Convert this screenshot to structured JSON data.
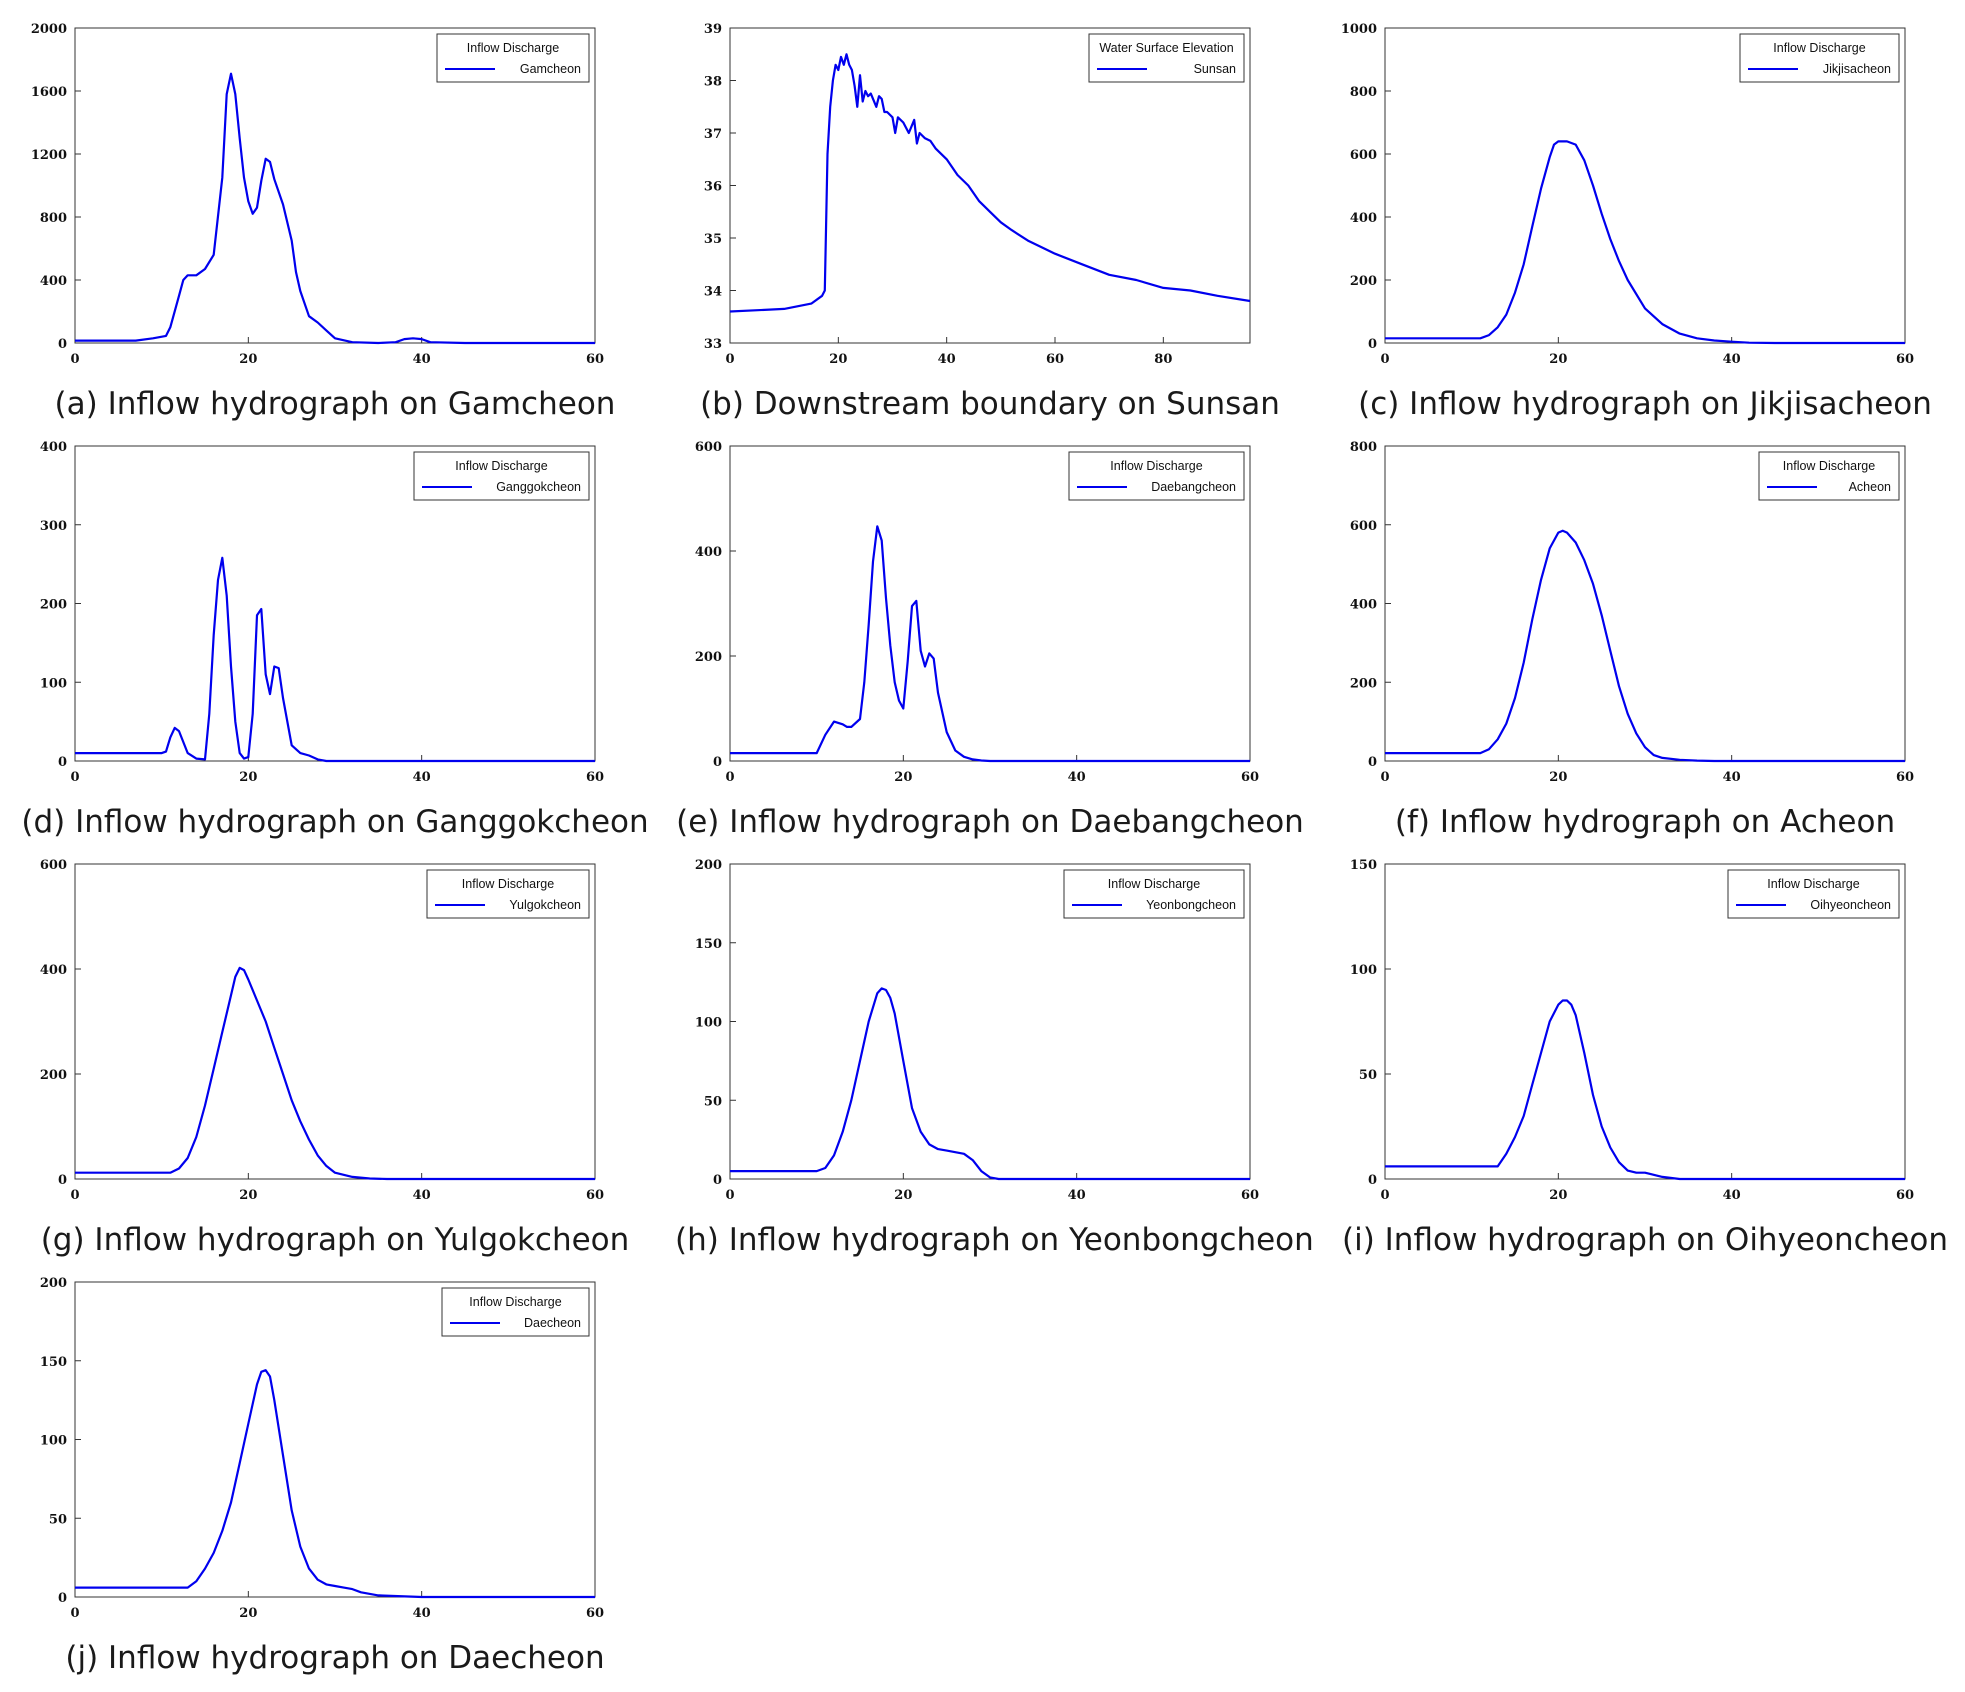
{
  "colors": {
    "line": "#0000ee",
    "frame": "#333333"
  },
  "chart_data": [
    {
      "id": "a",
      "type": "line",
      "caption": "(a) Inflow hydrograph on Gamcheon",
      "legend_title": "Inflow Discharge",
      "series_name": "Gamcheon",
      "xlim": [
        0,
        60
      ],
      "xticks": [
        0,
        20,
        40,
        60
      ],
      "ylim": [
        0,
        2000
      ],
      "yticks": [
        0,
        400,
        800,
        1200,
        1600,
        2000
      ],
      "x": [
        0,
        7,
        9,
        10.5,
        11,
        12,
        12.5,
        13,
        14,
        15,
        16,
        17,
        17.5,
        18,
        18.5,
        19,
        19.5,
        20,
        20.5,
        21,
        21.5,
        22,
        22.5,
        23,
        24,
        25,
        25.5,
        26,
        27,
        28,
        29,
        30,
        32,
        35,
        37,
        38,
        39,
        40,
        41,
        45,
        50,
        60
      ],
      "y": [
        15,
        15,
        30,
        45,
        100,
        300,
        400,
        430,
        430,
        470,
        560,
        1050,
        1580,
        1710,
        1580,
        1300,
        1050,
        900,
        820,
        860,
        1030,
        1170,
        1150,
        1040,
        880,
        650,
        450,
        330,
        170,
        130,
        80,
        30,
        5,
        0,
        5,
        25,
        30,
        25,
        5,
        0,
        0,
        0
      ]
    },
    {
      "id": "b",
      "type": "line",
      "caption": "(b) Downstream boundary on Sunsan",
      "legend_title": "Water Surface Elevation",
      "series_name": "Sunsan",
      "xlim": [
        0,
        96
      ],
      "xticks": [
        0,
        20,
        40,
        60,
        80
      ],
      "ylim": [
        33,
        39
      ],
      "yticks": [
        33,
        34,
        35,
        36,
        37,
        38,
        39
      ],
      "x": [
        0,
        10,
        15,
        17,
        17.5,
        18,
        18.5,
        19,
        19.5,
        20,
        20.5,
        21,
        21.5,
        22,
        22.5,
        23,
        23.5,
        24,
        24.5,
        25,
        25.5,
        26,
        27,
        27.5,
        28,
        28.5,
        29,
        30,
        30.5,
        31,
        32,
        33,
        34,
        34.5,
        35,
        36,
        37,
        38,
        40,
        42,
        44,
        46,
        48,
        50,
        52,
        55,
        58,
        60,
        65,
        70,
        75,
        80,
        85,
        90,
        96
      ],
      "y": [
        33.6,
        33.65,
        33.75,
        33.9,
        34.0,
        36.6,
        37.5,
        38.0,
        38.3,
        38.2,
        38.45,
        38.3,
        38.5,
        38.3,
        38.2,
        37.9,
        37.5,
        38.1,
        37.6,
        37.8,
        37.7,
        37.75,
        37.5,
        37.7,
        37.65,
        37.4,
        37.4,
        37.3,
        37.0,
        37.3,
        37.2,
        37.0,
        37.25,
        36.8,
        37.0,
        36.9,
        36.85,
        36.7,
        36.5,
        36.2,
        36.0,
        35.7,
        35.5,
        35.3,
        35.15,
        34.95,
        34.8,
        34.7,
        34.5,
        34.3,
        34.2,
        34.05,
        34.0,
        33.9,
        33.8
      ]
    },
    {
      "id": "c",
      "type": "line",
      "caption": "(c) Inflow hydrograph on Jikjisacheon",
      "legend_title": "Inflow Discharge",
      "series_name": "Jikjisacheon",
      "xlim": [
        0,
        60
      ],
      "xticks": [
        0,
        20,
        40,
        60
      ],
      "ylim": [
        0,
        1000
      ],
      "yticks": [
        0,
        200,
        400,
        600,
        800,
        1000
      ],
      "x": [
        0,
        11,
        12,
        13,
        14,
        15,
        16,
        17,
        18,
        19,
        19.5,
        20,
        21,
        22,
        23,
        24,
        25,
        26,
        27,
        28,
        30,
        32,
        34,
        36,
        38,
        40,
        42,
        45,
        50,
        60
      ],
      "y": [
        15,
        15,
        25,
        50,
        90,
        160,
        250,
        370,
        490,
        590,
        630,
        640,
        640,
        630,
        580,
        500,
        410,
        330,
        260,
        200,
        110,
        60,
        30,
        15,
        8,
        4,
        1,
        0,
        0,
        0
      ]
    },
    {
      "id": "d",
      "type": "line",
      "caption": "(d) Inflow hydrograph on Ganggokcheon",
      "legend_title": "Inflow Discharge",
      "series_name": "Ganggokcheon",
      "xlim": [
        0,
        60
      ],
      "xticks": [
        0,
        20,
        40,
        60
      ],
      "ylim": [
        0,
        400
      ],
      "yticks": [
        0,
        100,
        200,
        300,
        400
      ],
      "x": [
        0,
        10,
        10.5,
        11,
        11.5,
        12,
        13,
        14,
        15,
        15.5,
        16,
        16.5,
        17,
        17.5,
        18,
        18.5,
        19,
        19.5,
        20,
        20.5,
        21,
        21.5,
        22,
        22.5,
        23,
        23.5,
        24,
        25,
        26,
        27,
        28,
        29,
        30,
        32,
        60
      ],
      "y": [
        10,
        10,
        12,
        30,
        42,
        38,
        10,
        3,
        2,
        60,
        160,
        230,
        258,
        210,
        120,
        50,
        10,
        3,
        5,
        60,
        185,
        193,
        110,
        85,
        120,
        118,
        80,
        20,
        10,
        7,
        2,
        0,
        0,
        0,
        0
      ]
    },
    {
      "id": "e",
      "type": "line",
      "caption": "(e) Inflow hydrograph on Daebangcheon",
      "legend_title": "Inflow Discharge",
      "series_name": "Daebangcheon",
      "xlim": [
        0,
        60
      ],
      "xticks": [
        0,
        20,
        40,
        60
      ],
      "ylim": [
        0,
        600
      ],
      "yticks": [
        0,
        200,
        400,
        600
      ],
      "x": [
        0,
        10,
        11,
        12,
        13,
        13.5,
        14,
        15,
        15.5,
        16,
        16.5,
        17,
        17.5,
        18,
        18.5,
        19,
        19.5,
        20,
        20.5,
        21,
        21.5,
        22,
        22.5,
        23,
        23.5,
        24,
        25,
        26,
        27,
        28,
        29,
        30,
        35,
        60
      ],
      "y": [
        15,
        15,
        50,
        75,
        70,
        65,
        65,
        80,
        150,
        260,
        380,
        447,
        420,
        310,
        220,
        150,
        115,
        100,
        190,
        295,
        305,
        210,
        180,
        205,
        195,
        130,
        55,
        20,
        8,
        3,
        1,
        0,
        0,
        0
      ]
    },
    {
      "id": "f",
      "type": "line",
      "caption": "(f) Inflow hydrograph on Acheon",
      "legend_title": "Inflow Discharge",
      "series_name": "Acheon",
      "xlim": [
        0,
        60
      ],
      "xticks": [
        0,
        20,
        40,
        60
      ],
      "ylim": [
        0,
        800
      ],
      "yticks": [
        0,
        200,
        400,
        600,
        800
      ],
      "x": [
        0,
        11,
        12,
        13,
        14,
        15,
        16,
        17,
        18,
        19,
        20,
        20.5,
        21,
        22,
        23,
        24,
        25,
        26,
        27,
        28,
        29,
        30,
        31,
        32,
        34,
        36,
        38,
        40,
        60
      ],
      "y": [
        20,
        20,
        30,
        55,
        95,
        160,
        250,
        360,
        460,
        540,
        580,
        585,
        580,
        555,
        510,
        450,
        370,
        280,
        190,
        120,
        70,
        35,
        15,
        8,
        3,
        1,
        0,
        0,
        0
      ]
    },
    {
      "id": "g",
      "type": "line",
      "caption": "(g) Inflow hydrograph on Yulgokcheon",
      "legend_title": "Inflow Discharge",
      "series_name": "Yulgokcheon",
      "xlim": [
        0,
        60
      ],
      "xticks": [
        0,
        20,
        40,
        60
      ],
      "ylim": [
        0,
        600
      ],
      "yticks": [
        0,
        200,
        400,
        600
      ],
      "x": [
        0,
        11,
        12,
        13,
        14,
        15,
        16,
        17,
        18,
        18.5,
        19,
        19.5,
        20,
        21,
        22,
        23,
        24,
        25,
        26,
        27,
        28,
        29,
        30,
        32,
        34,
        36,
        38,
        40,
        60
      ],
      "y": [
        12,
        12,
        20,
        40,
        80,
        140,
        210,
        280,
        350,
        385,
        402,
        398,
        380,
        340,
        300,
        250,
        200,
        150,
        110,
        75,
        45,
        25,
        12,
        4,
        1,
        0,
        0,
        0,
        0
      ]
    },
    {
      "id": "h",
      "type": "line",
      "caption": "(h) Inflow hydrograph on Yeonbongcheon",
      "legend_title": "Inflow Discharge",
      "series_name": "Yeonbongcheon",
      "xlim": [
        0,
        60
      ],
      "xticks": [
        0,
        20,
        40,
        60
      ],
      "ylim": [
        0,
        200
      ],
      "yticks": [
        0,
        50,
        100,
        150,
        200
      ],
      "x": [
        0,
        10,
        11,
        12,
        13,
        14,
        15,
        16,
        17,
        17.5,
        18,
        18.5,
        19,
        20,
        21,
        22,
        23,
        24,
        25,
        26,
        27,
        28,
        29,
        30,
        31,
        32,
        35,
        40,
        60
      ],
      "y": [
        5,
        5,
        7,
        15,
        30,
        50,
        75,
        100,
        118,
        121,
        120,
        115,
        105,
        75,
        45,
        30,
        22,
        19,
        18,
        17,
        16,
        12,
        5,
        1,
        0,
        0,
        0,
        0,
        0
      ]
    },
    {
      "id": "i",
      "type": "line",
      "caption": "(i) Inflow hydrograph on Oihyeoncheon",
      "legend_title": "Inflow Discharge",
      "series_name": "Oihyeoncheon",
      "xlim": [
        0,
        60
      ],
      "xticks": [
        0,
        20,
        40,
        60
      ],
      "ylim": [
        0,
        150
      ],
      "yticks": [
        0,
        50,
        100,
        150
      ],
      "x": [
        0,
        13,
        14,
        15,
        16,
        17,
        18,
        19,
        20,
        20.5,
        21,
        21.5,
        22,
        23,
        24,
        25,
        26,
        27,
        28,
        29,
        30,
        31,
        32,
        34,
        36,
        40,
        60
      ],
      "y": [
        6,
        6,
        12,
        20,
        30,
        45,
        60,
        75,
        83,
        85,
        85,
        83,
        78,
        60,
        40,
        25,
        15,
        8,
        4,
        3,
        3,
        2,
        1,
        0,
        0,
        0,
        0
      ]
    },
    {
      "id": "j",
      "type": "line",
      "caption": "(j) Inflow hydrograph on Daecheon",
      "legend_title": "Inflow Discharge",
      "series_name": "Daecheon",
      "xlim": [
        0,
        60
      ],
      "xticks": [
        0,
        20,
        40,
        60
      ],
      "ylim": [
        0,
        200
      ],
      "yticks": [
        0,
        50,
        100,
        150,
        200
      ],
      "x": [
        0,
        13,
        14,
        15,
        16,
        17,
        18,
        19,
        20,
        21,
        21.5,
        22,
        22.5,
        23,
        24,
        25,
        26,
        27,
        28,
        29,
        30,
        31,
        32,
        33,
        35,
        40,
        60
      ],
      "y": [
        6,
        6,
        10,
        18,
        28,
        42,
        60,
        85,
        110,
        135,
        143,
        144,
        140,
        125,
        90,
        55,
        32,
        18,
        11,
        8,
        7,
        6,
        5,
        3,
        1,
        0,
        0
      ]
    }
  ]
}
